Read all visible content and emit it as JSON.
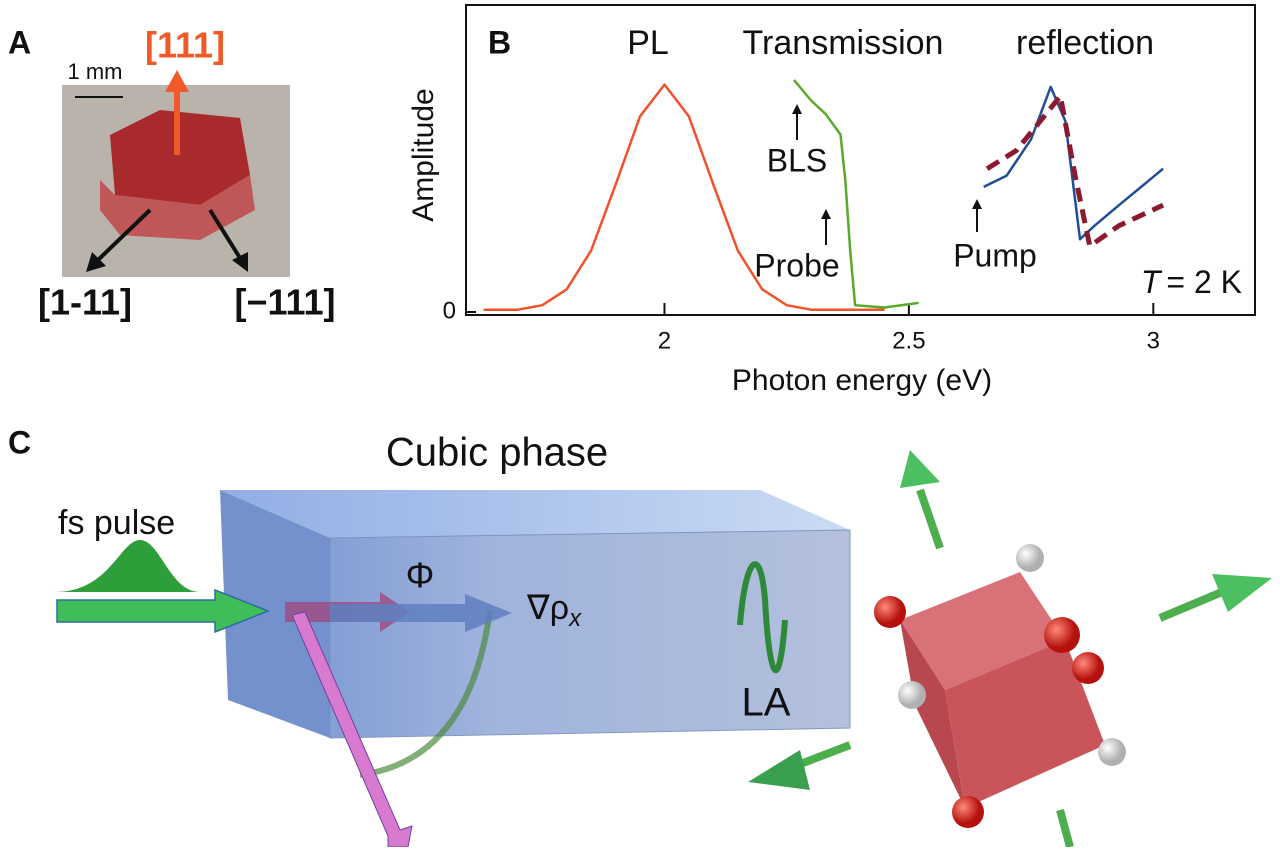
{
  "panel_a": {
    "label": "A",
    "scale_bar": "1 mm",
    "directions": [
      "[111]",
      "[1-11]",
      "[−111]"
    ]
  },
  "chart_data": {
    "type": "line",
    "label": "B",
    "ylabel": "Amplitude",
    "xlabel": "Photon energy (eV)",
    "xlim": [
      1.594,
      3.208
    ],
    "ylim": [
      0,
      1.35
    ],
    "xticks": [
      2,
      2.5,
      3
    ],
    "yticks": [
      0
    ],
    "curve_labels": [
      "PL",
      "Transmission",
      "reflection"
    ],
    "annotations": [
      "BLS",
      "Probe",
      "Pump"
    ],
    "temperature": [
      "T",
      "= 2 K"
    ],
    "series": [
      {
        "color": "#f0522a",
        "x": [
          1.63,
          1.7,
          1.75,
          1.8,
          1.85,
          1.9,
          1.95,
          2.0,
          2.05,
          2.1,
          2.15,
          2.2,
          2.25,
          2.3,
          2.35,
          2.45
        ],
        "values": [
          0.01,
          0.01,
          0.03,
          0.1,
          0.27,
          0.56,
          0.86,
          1.0,
          0.86,
          0.56,
          0.27,
          0.1,
          0.03,
          0.01,
          0.01,
          0.01
        ]
      },
      {
        "color": "#5aaa2a",
        "x": [
          2.265,
          2.3,
          2.33,
          2.36,
          2.37,
          2.38,
          2.39,
          2.45,
          2.52
        ],
        "values": [
          1.02,
          0.93,
          0.87,
          0.78,
          0.58,
          0.27,
          0.03,
          0.02,
          0.04
        ]
      },
      {
        "color": "#1f4e96",
        "x": [
          2.653,
          2.7,
          2.75,
          2.79,
          2.82,
          2.85,
          2.88,
          2.93,
          3.02
        ],
        "values": [
          0.55,
          0.6,
          0.76,
          0.99,
          0.84,
          0.32,
          0.38,
          0.47,
          0.63
        ]
      },
      {
        "color": "#8b1a2e",
        "dashed": true,
        "x": [
          2.66,
          2.72,
          2.78,
          2.81,
          2.84,
          2.87,
          2.93,
          3.02
        ],
        "values": [
          0.63,
          0.71,
          0.87,
          0.95,
          0.6,
          0.29,
          0.38,
          0.47
        ]
      }
    ]
  },
  "panel_c": {
    "label": "C",
    "title": "Cubic phase",
    "pulse": "fs pulse",
    "phi": "Φ",
    "gradient": "∇ρ",
    "gradient_sub": "x",
    "mode": "LA"
  }
}
